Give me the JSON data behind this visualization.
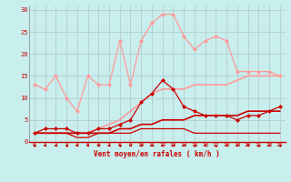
{
  "background_color": "#c8eeed",
  "grid_color": "#b0c8c8",
  "xlabel": "Vent moyen/en rafales ( km/h )",
  "x_ticks": [
    0,
    1,
    2,
    3,
    4,
    5,
    6,
    7,
    8,
    9,
    10,
    11,
    12,
    13,
    14,
    15,
    16,
    17,
    18,
    19,
    20,
    21,
    22,
    23
  ],
  "ylim": [
    0,
    31
  ],
  "yticks": [
    0,
    5,
    10,
    15,
    20,
    25,
    30
  ],
  "series": [
    {
      "name": "rafales_max",
      "color": "#ff9999",
      "linewidth": 0.9,
      "marker": "D",
      "markersize": 2.0,
      "y": [
        13,
        12,
        15,
        10,
        7,
        15,
        13,
        13,
        23,
        13,
        23,
        27,
        29,
        29,
        24,
        21,
        23,
        24,
        23,
        16,
        16,
        16,
        16,
        15
      ]
    },
    {
      "name": "rafales_avg",
      "color": "#ff9999",
      "linewidth": 1.2,
      "marker": null,
      "markersize": 0,
      "y": [
        2,
        2,
        2,
        2,
        2,
        2,
        3,
        4,
        5,
        7,
        9,
        11,
        12,
        12,
        12,
        13,
        13,
        13,
        13,
        14,
        15,
        15,
        15,
        15
      ]
    },
    {
      "name": "vent_max",
      "color": "#cc0000",
      "linewidth": 0.9,
      "marker": "D",
      "markersize": 2.0,
      "y": [
        2,
        3,
        3,
        3,
        2,
        2,
        3,
        3,
        4,
        5,
        9,
        11,
        14,
        12,
        8,
        7,
        6,
        6,
        6,
        5,
        6,
        6,
        7,
        8
      ]
    },
    {
      "name": "vent_avg",
      "color": "#cc0000",
      "linewidth": 1.2,
      "marker": null,
      "markersize": 0,
      "y": [
        2,
        2,
        2,
        2,
        2,
        2,
        2,
        2,
        3,
        3,
        4,
        4,
        5,
        5,
        5,
        6,
        6,
        6,
        6,
        6,
        7,
        7,
        7,
        7
      ]
    },
    {
      "name": "vent_min",
      "color": "#cc0000",
      "linewidth": 0.9,
      "marker": null,
      "markersize": 0,
      "y": [
        2,
        2,
        2,
        2,
        1,
        1,
        2,
        2,
        2,
        2,
        3,
        3,
        3,
        3,
        3,
        2,
        2,
        2,
        2,
        2,
        2,
        2,
        2,
        2
      ]
    }
  ],
  "arrow_color": "#cc0000",
  "arrow_angles_deg": [
    225,
    270,
    270,
    225,
    270,
    270,
    270,
    270,
    225,
    270,
    270,
    270,
    270,
    270,
    270,
    225,
    270,
    225,
    270,
    270,
    270,
    225,
    270,
    225
  ]
}
